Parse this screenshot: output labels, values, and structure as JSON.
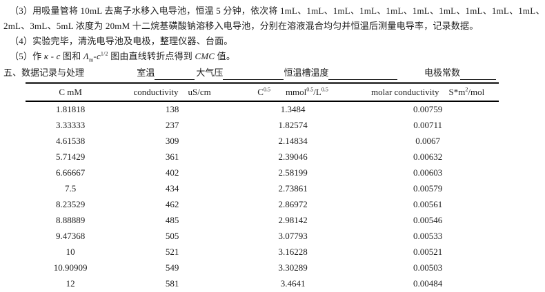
{
  "procedure": {
    "step3_line1": "（3）用吸量管将 10mL 去离子水移入电导池，恒温 5 分钟，依次将 1mL、1mL、1mL、1mL、1mL、1mL、1mL、1mL、1mL、1mL、",
    "step3_line2": "2mL、3mL、5mL 浓度为 20mM 十二烷基磺酸钠溶移入电导池，分别在溶液混合均匀并恒温后测量电导率，记录数据。",
    "step4": "（4）实验完毕，清洗电导池及电极，整理仪器、台面。",
    "step5": {
      "prefix": "（5）作 ",
      "kappa_c": "κ - c",
      "mid1": " 图和 ",
      "lambda": "Λ",
      "lambda_sub": "m",
      "mid2": "-c",
      "c_sup": "1/2",
      "mid3": " 图由直线转折点得到 ",
      "cmc": "CMC",
      "suffix": " 值。"
    }
  },
  "section": {
    "title": "五、数据记录与处理",
    "fields": {
      "room_temp": "室温",
      "pressure": "大气压",
      "bath_temp": "恒温槽温度",
      "electrode_const": "电极常数"
    }
  },
  "table": {
    "header": {
      "c": "C mM",
      "conductivity": "conductivity",
      "conductivity_unit": "uS/cm",
      "c_base": "C",
      "c_sup": "0.5",
      "unit_mmol": "mmol",
      "unit_mmol_sup": "0.5",
      "unit_l": "/L",
      "unit_l_sup": "0.5",
      "molar": "molar conductivity",
      "molar_unit_base": "S*m",
      "molar_unit_sup": "2",
      "molar_unit_suffix": "/mol"
    },
    "rows": [
      [
        "1.81818",
        "138",
        "1.3484",
        "0.00759"
      ],
      [
        "3.33333",
        "237",
        "1.82574",
        "0.00711"
      ],
      [
        "4.61538",
        "309",
        "2.14834",
        "0.0067"
      ],
      [
        "5.71429",
        "361",
        "2.39046",
        "0.00632"
      ],
      [
        "6.66667",
        "402",
        "2.58199",
        "0.00603"
      ],
      [
        "7.5",
        "434",
        "2.73861",
        "0.00579"
      ],
      [
        "8.23529",
        "462",
        "2.86972",
        "0.00561"
      ],
      [
        "8.88889",
        "485",
        "2.98142",
        "0.00546"
      ],
      [
        "9.47368",
        "505",
        "3.07793",
        "0.00533"
      ],
      [
        "10",
        "521",
        "3.16228",
        "0.00521"
      ],
      [
        "10.90909",
        "549",
        "3.30289",
        "0.00503"
      ],
      [
        "12",
        "581",
        "3.4641",
        "0.00484"
      ]
    ]
  }
}
